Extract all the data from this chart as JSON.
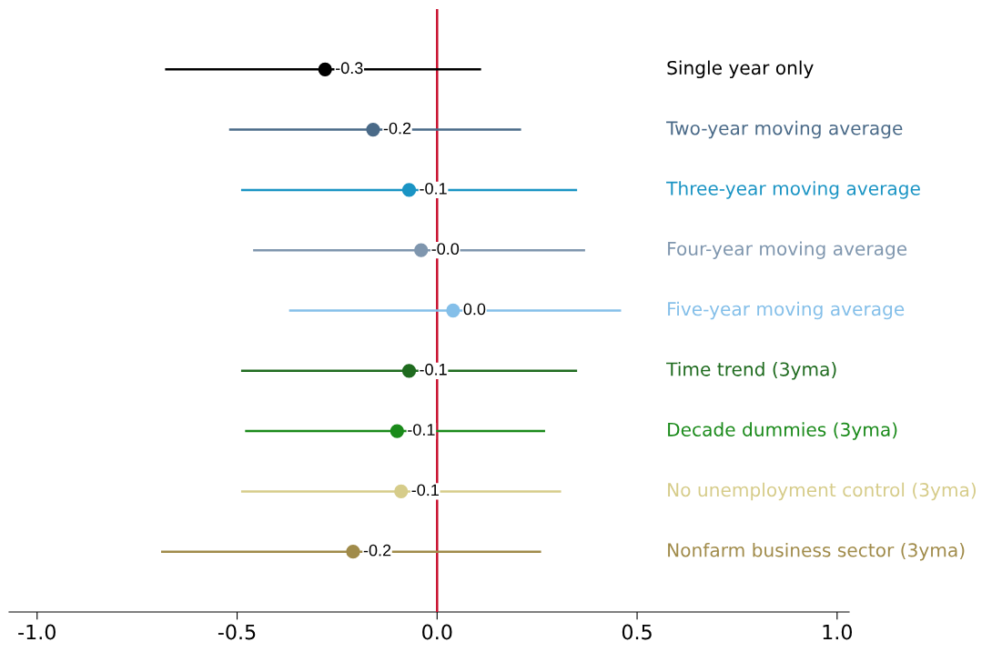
{
  "chart_data": {
    "type": "scatter",
    "orientation": "horizontal",
    "grid": false,
    "legend": false,
    "marker": "circle",
    "tick_labels": "x",
    "categories": [
      "Single year only",
      "Two-year moving average",
      "Three-year moving average",
      "Four-year moving average",
      "Five-year moving average",
      "Time trend (3yma)",
      "Decade dummies (3yma)",
      "No unemployment control (3yma)",
      "Nonfarm business sector (3yma)"
    ],
    "values": [
      -0.28,
      -0.16,
      -0.07,
      -0.04,
      0.04,
      -0.07,
      -0.1,
      -0.09,
      -0.21
    ],
    "errors": [
      [
        -0.68,
        0.11
      ],
      [
        -0.52,
        0.21
      ],
      [
        -0.49,
        0.35
      ],
      [
        -0.46,
        0.37
      ],
      [
        -0.37,
        0.46
      ],
      [
        -0.49,
        0.35
      ],
      [
        -0.48,
        0.27
      ],
      [
        -0.49,
        0.31
      ],
      [
        -0.69,
        0.26
      ]
    ],
    "value_labels": [
      "-0.3",
      "-0.2",
      "-0.1",
      "-0.0",
      "0.0",
      "-0.1",
      "-0.1",
      "-0.1",
      "-0.2"
    ],
    "colors": [
      "#000000",
      "#4a6a88",
      "#1a94c4",
      "#7f96ae",
      "#84bfe9",
      "#1f6b1f",
      "#1a8a1a",
      "#d6cc8a",
      "#a08b4a"
    ],
    "xlim": [
      -1.07,
      1.03
    ],
    "xticks": [
      {
        "value": -1,
        "label": "-1.0"
      },
      {
        "value": -0.5,
        "label": "-0.5"
      },
      {
        "value": 0,
        "label": "0.0"
      },
      {
        "value": 0.5,
        "label": "0.5"
      },
      {
        "value": 1,
        "label": "1.0"
      }
    ],
    "ref_lines": [
      {
        "axis": "x",
        "value": 0,
        "label": null,
        "color": "#c8102e"
      }
    ]
  }
}
